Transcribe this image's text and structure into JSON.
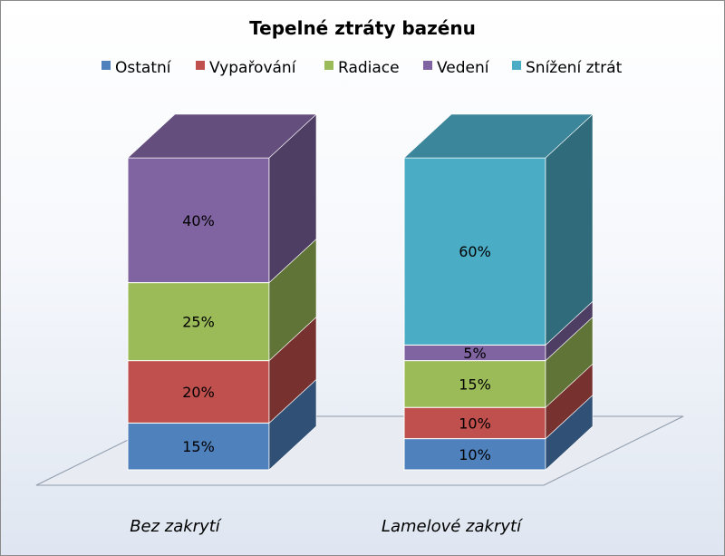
{
  "chart_data": {
    "type": "bar",
    "stacked": true,
    "three_d": true,
    "title": "Tepelné ztráty bazénu",
    "legend_position": "top",
    "categories": [
      "Bez zakrytí",
      "Lamelové zakrytí"
    ],
    "series": [
      {
        "name": "Ostatní",
        "values": [
          15,
          10
        ],
        "labels": [
          "15%",
          "10%"
        ],
        "color": "#4F81BD"
      },
      {
        "name": "Vypařování",
        "values": [
          20,
          10
        ],
        "labels": [
          "20%",
          "10%"
        ],
        "color": "#C0504D"
      },
      {
        "name": "Radiace",
        "values": [
          25,
          15
        ],
        "labels": [
          "25%",
          "15%"
        ],
        "color": "#9BBB59"
      },
      {
        "name": "Vedení",
        "values": [
          40,
          5
        ],
        "labels": [
          "40%",
          "5%"
        ],
        "color": "#8064A2"
      },
      {
        "name": "Snížení ztrát",
        "values": [
          0,
          60
        ],
        "labels": [
          "",
          "60%"
        ],
        "color": "#4BACC6"
      }
    ],
    "ylim": [
      0,
      100
    ],
    "grid": false
  }
}
